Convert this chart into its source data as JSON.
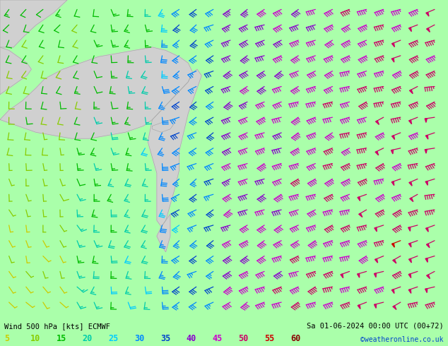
{
  "title_left": "Wind 500 hPa [kts] ECMWF",
  "title_right": "Sa 01-06-2024 00:00 UTC (00+72)",
  "watermark": "©weatheronline.co.uk",
  "background_color": "#aaffaa",
  "land_color": "#d0d0d0",
  "land_edge_color": "#aaaaaa",
  "legend_values": [
    5,
    10,
    15,
    20,
    25,
    30,
    35,
    40,
    45,
    50,
    55,
    60
  ],
  "legend_colors": [
    "#cccc00",
    "#88cc00",
    "#00bb00",
    "#00ccaa",
    "#00ccff",
    "#0088ff",
    "#0044cc",
    "#8800cc",
    "#cc00cc",
    "#cc0066",
    "#cc0000",
    "#880000"
  ],
  "title_color": "#000000",
  "figsize": [
    6.34,
    4.9
  ],
  "dpi": 100,
  "speed_colors": {
    "5": "#cccc00",
    "10": "#88cc00",
    "15": "#00bb00",
    "20": "#00ccaa",
    "25": "#00ccff",
    "30": "#0088ff",
    "35": "#0044cc",
    "40": "#8800cc",
    "45": "#cc00cc",
    "50": "#cc0066",
    "55": "#cc0000",
    "60": "#880000"
  }
}
